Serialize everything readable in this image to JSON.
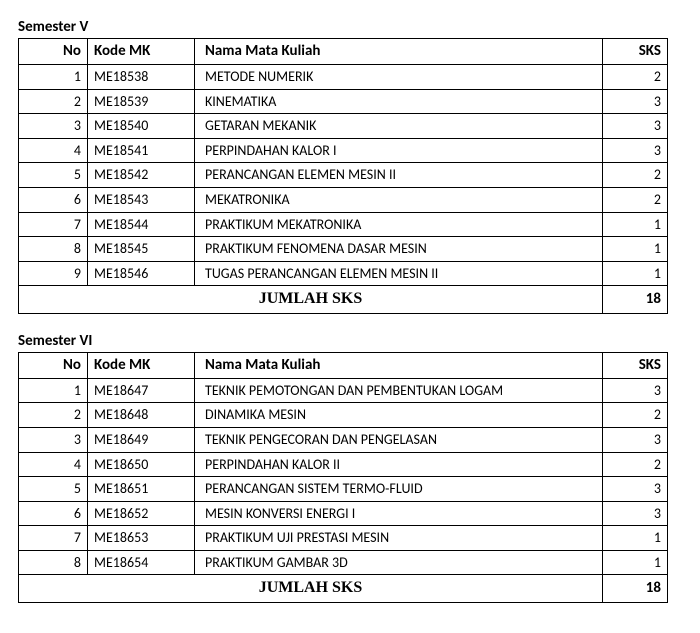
{
  "columns": {
    "no": "No",
    "kode": "Kode MK",
    "nama": "Nama Mata Kuliah",
    "sks": "SKS"
  },
  "total_label": "JUMLAH SKS",
  "semesters": [
    {
      "title": "Semester V",
      "rows": [
        {
          "no": "1",
          "kode": "ME18538",
          "nama": "METODE NUMERIK",
          "sks": "2"
        },
        {
          "no": "2",
          "kode": "ME18539",
          "nama": "KINEMATIKA",
          "sks": "3"
        },
        {
          "no": "3",
          "kode": "ME18540",
          "nama": "GETARAN MEKANIK",
          "sks": "3"
        },
        {
          "no": "4",
          "kode": "ME18541",
          "nama": "PERPINDAHAN KALOR I",
          "sks": "3"
        },
        {
          "no": "5",
          "kode": "ME18542",
          "nama": "PERANCANGAN ELEMEN MESIN II",
          "sks": "2"
        },
        {
          "no": "6",
          "kode": "ME18543",
          "nama": "MEKATRONIKA",
          "sks": "2"
        },
        {
          "no": "7",
          "kode": "ME18544",
          "nama": "PRAKTIKUM MEKATRONIKA",
          "sks": "1"
        },
        {
          "no": "8",
          "kode": "ME18545",
          "nama": "PRAKTIKUM FENOMENA DASAR MESIN",
          "sks": "1"
        },
        {
          "no": "9",
          "kode": "ME18546",
          "nama": "TUGAS PERANCANGAN ELEMEN MESIN II",
          "sks": "1"
        }
      ],
      "total": "18"
    },
    {
      "title": "Semester VI",
      "rows": [
        {
          "no": "1",
          "kode": "ME18647",
          "nama": "TEKNIK PEMOTONGAN DAN PEMBENTUKAN LOGAM",
          "sks": "3"
        },
        {
          "no": "2",
          "kode": "ME18648",
          "nama": "DINAMIKA MESIN",
          "sks": "2"
        },
        {
          "no": "3",
          "kode": "ME18649",
          "nama": "TEKNIK PENGECORAN DAN PENGELASAN",
          "sks": "3"
        },
        {
          "no": "4",
          "kode": "ME18650",
          "nama": "PERPINDAHAN KALOR II",
          "sks": "2"
        },
        {
          "no": "5",
          "kode": "ME18651",
          "nama": "PERANCANGAN SISTEM TERMO-FLUID",
          "sks": "3"
        },
        {
          "no": "6",
          "kode": "ME18652",
          "nama": "MESIN KONVERSI ENERGI I",
          "sks": "3"
        },
        {
          "no": "7",
          "kode": "ME18653",
          "nama": "PRAKTIKUM UJI PRESTASI MESIN",
          "sks": "1"
        },
        {
          "no": "8",
          "kode": "ME18654",
          "nama": "PRAKTIKUM GAMBAR 3D",
          "sks": "1"
        }
      ],
      "total": "18"
    }
  ]
}
